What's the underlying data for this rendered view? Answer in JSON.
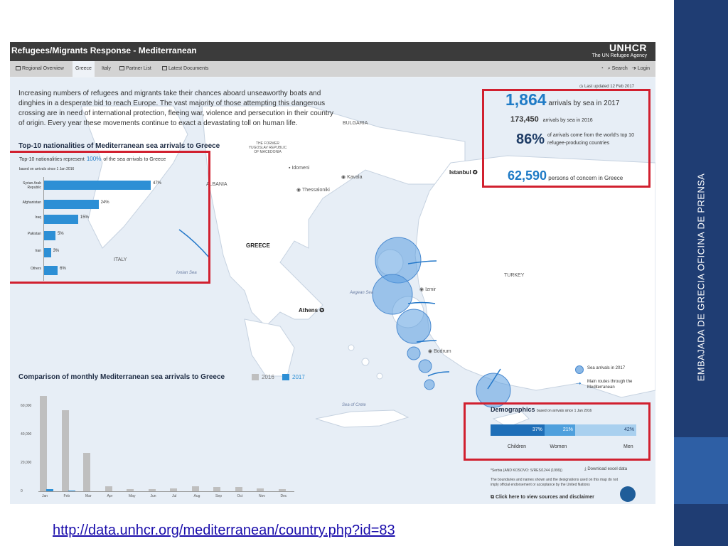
{
  "sidebar": {
    "vertical_text": "EMBAJADA DE GRECIA OFICINA DE PRENSA"
  },
  "app": {
    "title": "Refugees/Migrants Response - Mediterranean",
    "logo_line1": "UNHCR",
    "logo_line2": "The UN Refugee Agency",
    "tabs": [
      {
        "label": "Regional Overview"
      },
      {
        "label": "Greece"
      },
      {
        "label": "Italy"
      },
      {
        "label": "Partner List"
      },
      {
        "label": "Latest Documents"
      }
    ],
    "search_label": "Search",
    "login_label": "Login",
    "last_updated": "Last updated 12 Feb 2017",
    "intro": "Increasing numbers of refugees and migrants take their chances aboard unseaworthy boats and dinghies in a desperate bid to reach Europe. The vast majority of those attempting this dangerous crossing are in need of international protection, fleeing war, violence and persecution in their country of origin. Every year these movements continue to exact a devastating toll on human life."
  },
  "stats": {
    "arrivals_2017_value": "1,864",
    "arrivals_2017_text": "arrivals by sea in 2017",
    "arrivals_2016_value": "173,450",
    "arrivals_2016_text": "arrivals by sea in 2016",
    "top10_value": "86%",
    "top10_text": "of arrivals come from the world's top 10 refugee-producing countries",
    "concern_value": "62,590",
    "concern_text": "persons of concern in Greece"
  },
  "nationalities": {
    "title": "Top-10 nationalities of Mediterranean sea arrivals to Greece",
    "subtitle_pre": "Top-10 nationalities represent",
    "subtitle_value": "100%",
    "subtitle_post": "of the sea arrivals to Greece",
    "basis": "based on arrivals since 1 Jan 2016",
    "items": [
      {
        "label": "Syrian Arab Republic",
        "value": 47,
        "text": "47%"
      },
      {
        "label": "Afghanistan",
        "value": 24,
        "text": "24%"
      },
      {
        "label": "Iraq",
        "value": 15,
        "text": "15%"
      },
      {
        "label": "Pakistan",
        "value": 5,
        "text": "5%"
      },
      {
        "label": "Iran",
        "value": 3,
        "text": "3%"
      },
      {
        "label": "Others",
        "value": 6,
        "text": "6%"
      }
    ]
  },
  "map": {
    "labels": {
      "bulgaria": "BULGARIA",
      "fyrom": "THE FORMER YUGOSLAV REPUBLIC OF MACEDONIA",
      "albania": "ALBANIA",
      "italy": "ITALY",
      "greece": "GREECE",
      "turkey": "TURKEY",
      "idomeni": "Idomeni",
      "kavala": "Kavala",
      "thessaloniki": "Thessaloniki",
      "istanbul": "Istanbul",
      "izmir": "Izmir",
      "athens": "Athens",
      "bodrum": "Bodrum",
      "aegean": "Aegean Sea",
      "ionian": "Ionian Sea",
      "crete_sea": "Sea of Crete"
    },
    "legend_circle": "Sea arrivals in 2017",
    "legend_arrow": "Main routes through the Mediterranean"
  },
  "chart_data": {
    "type": "bar",
    "title": "Comparison of monthly Mediterranean sea arrivals to Greece",
    "categories": [
      "Jan",
      "Feb",
      "Mar",
      "Apr",
      "May",
      "Jun",
      "Jul",
      "Aug",
      "Sep",
      "Oct",
      "Nov",
      "Dec"
    ],
    "series": [
      {
        "name": "2016",
        "color": "#bfbfbf",
        "values": [
          67000,
          57000,
          27000,
          3600,
          1700,
          1500,
          1900,
          3400,
          3000,
          2900,
          2000,
          1700
        ]
      },
      {
        "name": "2017",
        "color": "#2d8fd5",
        "values": [
          1400,
          400,
          0,
          0,
          0,
          0,
          0,
          0,
          0,
          0,
          0,
          0
        ]
      }
    ],
    "y_ticks": [
      "60,000",
      "40,000",
      "20,000",
      "0"
    ],
    "ylim": [
      0,
      70000
    ]
  },
  "demographics": {
    "title": "Demographics",
    "basis": "based on arrivals since 1 Jan 2016",
    "segments": [
      {
        "label": "Children",
        "value": 37,
        "text": "37%",
        "color": "#1f6fb8"
      },
      {
        "label": "Women",
        "value": 21,
        "text": "21%",
        "color": "#4fa0dd"
      },
      {
        "label": "Men",
        "value": 42,
        "text": "42%",
        "color": "#a9d0ef"
      }
    ]
  },
  "footer": {
    "serbia_note": "*Serbia (AND KOSOVO: S/RES/1244 (1999))",
    "download": "Download excel data",
    "disclaimer_note": "The boundaries and names shown and the designations used on this map do not imply official endorsement or acceptance by the United Nations",
    "sources_link": "Click here to view sources and disclaimer"
  },
  "url": "http://data.unhcr.org/mediterranean/country.php?id=83"
}
